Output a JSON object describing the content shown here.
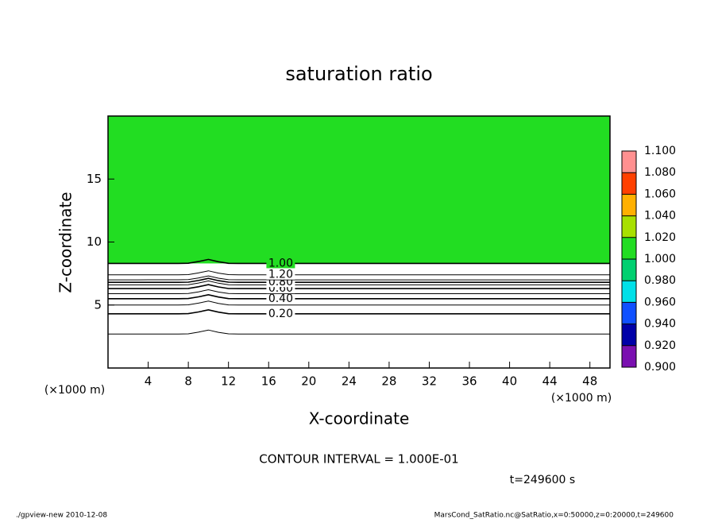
{
  "chart_data": {
    "type": "contour",
    "title": "saturation ratio",
    "x_label": "X-coordinate",
    "y_label": "Z-coordinate",
    "x_unit": "(×1000 m)",
    "y_unit": "(×1000 m)",
    "xlim": [
      0,
      50
    ],
    "xticks": [
      4,
      8,
      12,
      16,
      20,
      24,
      28,
      32,
      36,
      40,
      44,
      48
    ],
    "ylim": [
      0,
      20
    ],
    "yticks": [
      5,
      10,
      15
    ],
    "contour_interval": "CONTOUR INTERVAL = 1.000E-01",
    "time_label": "t=249600 s",
    "footer_left": "./gpview-new  2010-12-08",
    "footer_right": "MarsCond_SatRatio.nc@SatRatio,x=0:50000,z=0:20000,t=249600",
    "contours": [
      0.1,
      {
        "value": 0.2,
        "label": "0.20"
      },
      0.3,
      {
        "value": 0.4,
        "label": "0.40"
      },
      0.5,
      {
        "value": 0.6,
        "label": "0.60"
      },
      0.7,
      {
        "value": 0.8,
        "label": "0.80"
      },
      0.9,
      {
        "value": 1.0,
        "label": "1.00"
      },
      {
        "value": 1.2,
        "label": "1.20"
      }
    ],
    "contour_heights": [
      2.7,
      4.3,
      5.0,
      5.5,
      5.9,
      6.3,
      6.6,
      6.8,
      7.0,
      8.3,
      7.4
    ],
    "colorbar": {
      "levels": [
        {
          "value": 0.9,
          "label": "0.900"
        },
        {
          "value": 0.92,
          "label": "0.920"
        },
        {
          "value": 0.94,
          "label": "0.940"
        },
        {
          "value": 0.96,
          "label": "0.960"
        },
        {
          "value": 0.98,
          "label": "0.980"
        },
        {
          "value": 1.0,
          "label": "1.000"
        },
        {
          "value": 1.02,
          "label": "1.020"
        },
        {
          "value": 1.04,
          "label": "1.040"
        },
        {
          "value": 1.06,
          "label": "1.060"
        },
        {
          "value": 1.08,
          "label": "1.080"
        },
        {
          "value": 1.1,
          "label": "1.100"
        }
      ],
      "colors": [
        "#7a10b0",
        "#0000a8",
        "#1050ff",
        "#00e0e8",
        "#00d070",
        "#22dd22",
        "#a8e000",
        "#ffb000",
        "#ff4000",
        "#ff9090"
      ]
    }
  }
}
